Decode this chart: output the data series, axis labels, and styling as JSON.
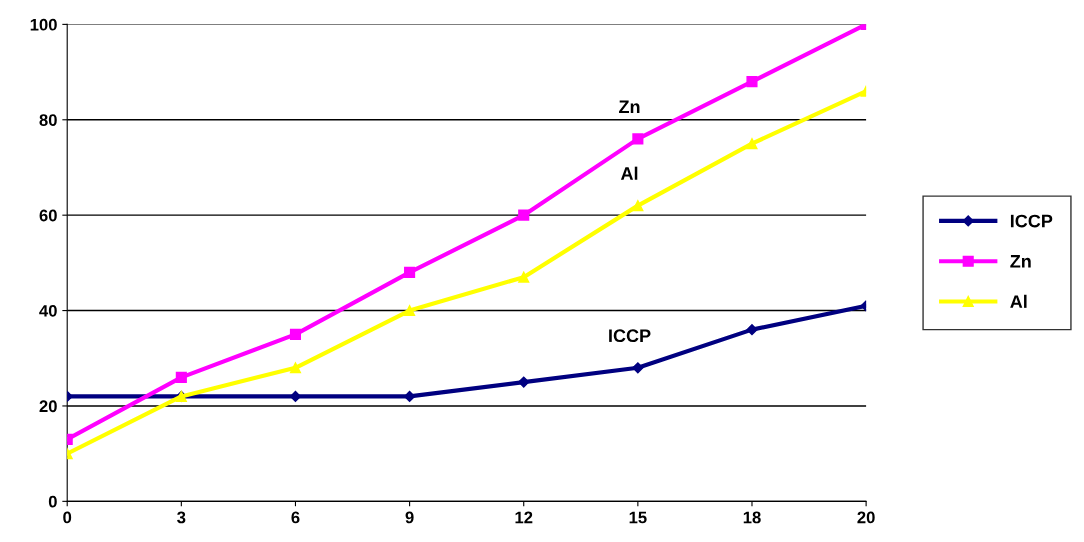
{
  "chart_data": {
    "type": "line",
    "categories": [
      "0",
      "3",
      "6",
      "9",
      "12",
      "15",
      "18",
      "20"
    ],
    "series": [
      {
        "name": "ICCP",
        "color": "#000080",
        "marker": "diamond",
        "values": [
          22,
          22,
          22,
          22,
          25,
          28,
          36,
          41
        ]
      },
      {
        "name": "Zn",
        "color": "#ff00ff",
        "marker": "square",
        "values": [
          13,
          26,
          35,
          48,
          60,
          76,
          88,
          100
        ]
      },
      {
        "name": "Al",
        "color": "#ffff00",
        "marker": "triangle",
        "values": [
          10,
          22,
          28,
          40,
          47,
          62,
          75,
          86
        ]
      }
    ],
    "ylim": [
      0,
      100
    ],
    "yticks": [
      0,
      20,
      40,
      60,
      80,
      100
    ],
    "grid": "y",
    "legend": "right",
    "line_style": "solid"
  }
}
